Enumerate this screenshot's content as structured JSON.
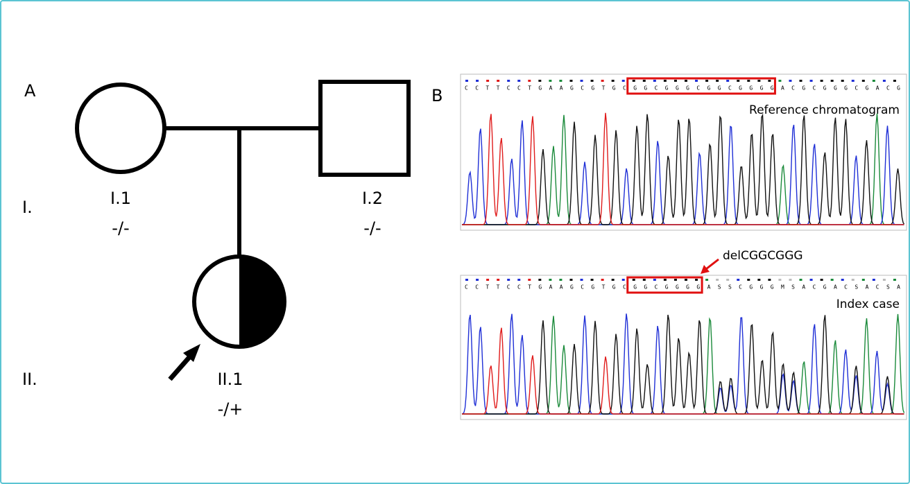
{
  "panel_a": {
    "label": "A",
    "generations": [
      "I.",
      "II."
    ],
    "individuals": [
      {
        "id": "I.1",
        "genotype": "-/-"
      },
      {
        "id": "I.2",
        "genotype": "-/-"
      },
      {
        "id": "II.1",
        "genotype": "-/+"
      }
    ]
  },
  "panel_b": {
    "label": "B",
    "chromatograms": [
      {
        "title": "Reference chromatogram",
        "sequence": "CCTTCCTGAAGCGTGCGGCGGGCGGCGGGGACGCGGGCGACG"
      },
      {
        "title": "Index case",
        "sequence": "CCTTCCTGAAGCGTGCGGCGGGGASSCGGGMSACGACSACSA",
        "annotation": "delCGGCGGG"
      }
    ]
  }
}
